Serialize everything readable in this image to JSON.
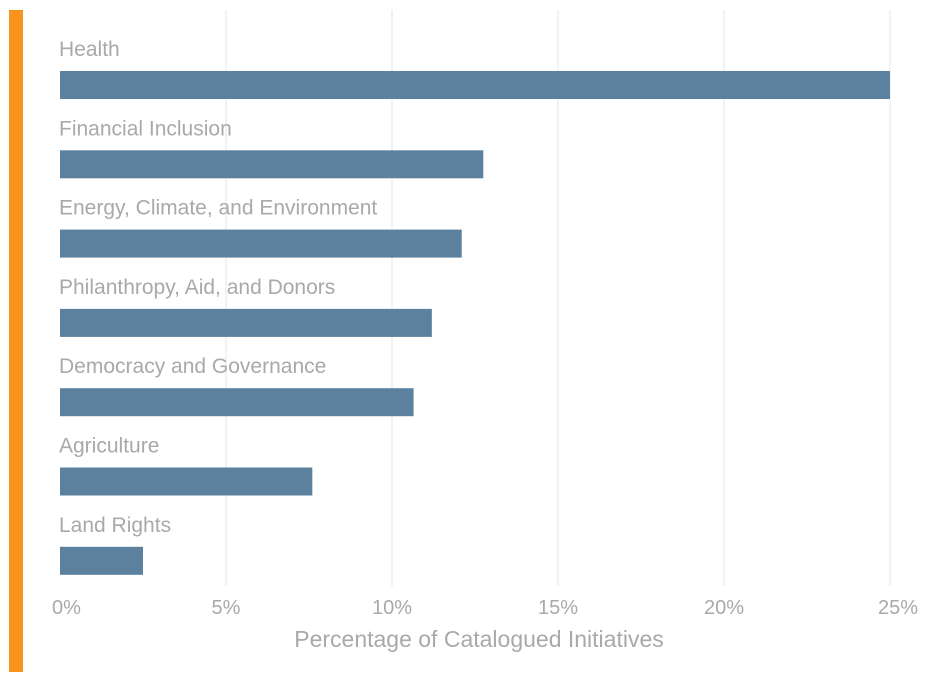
{
  "colors": {
    "accent": "#f7941d",
    "bar": "#5c819e",
    "grid": "#e6e6e6",
    "text": "#a9a9a9"
  },
  "chart_data": {
    "type": "bar",
    "orientation": "horizontal",
    "categories": [
      "Health",
      "Financial Inclusion",
      "Energy, Climate, and Environment",
      "Philanthropy, Aid, and Donors",
      "Democracy and Governance",
      "Agriculture",
      "Land Rights"
    ],
    "values": [
      25.0,
      12.75,
      12.1,
      11.2,
      10.65,
      7.6,
      2.5
    ],
    "xlabel": "Percentage of Catalogued Initiatives",
    "ylabel": "",
    "xlim": [
      0,
      25
    ],
    "x_ticks": [
      0,
      5,
      10,
      15,
      20,
      25
    ],
    "x_tick_labels": [
      "0%",
      "5%",
      "10%",
      "15%",
      "20%",
      "25%"
    ],
    "grid": "vertical",
    "legend": "none"
  }
}
